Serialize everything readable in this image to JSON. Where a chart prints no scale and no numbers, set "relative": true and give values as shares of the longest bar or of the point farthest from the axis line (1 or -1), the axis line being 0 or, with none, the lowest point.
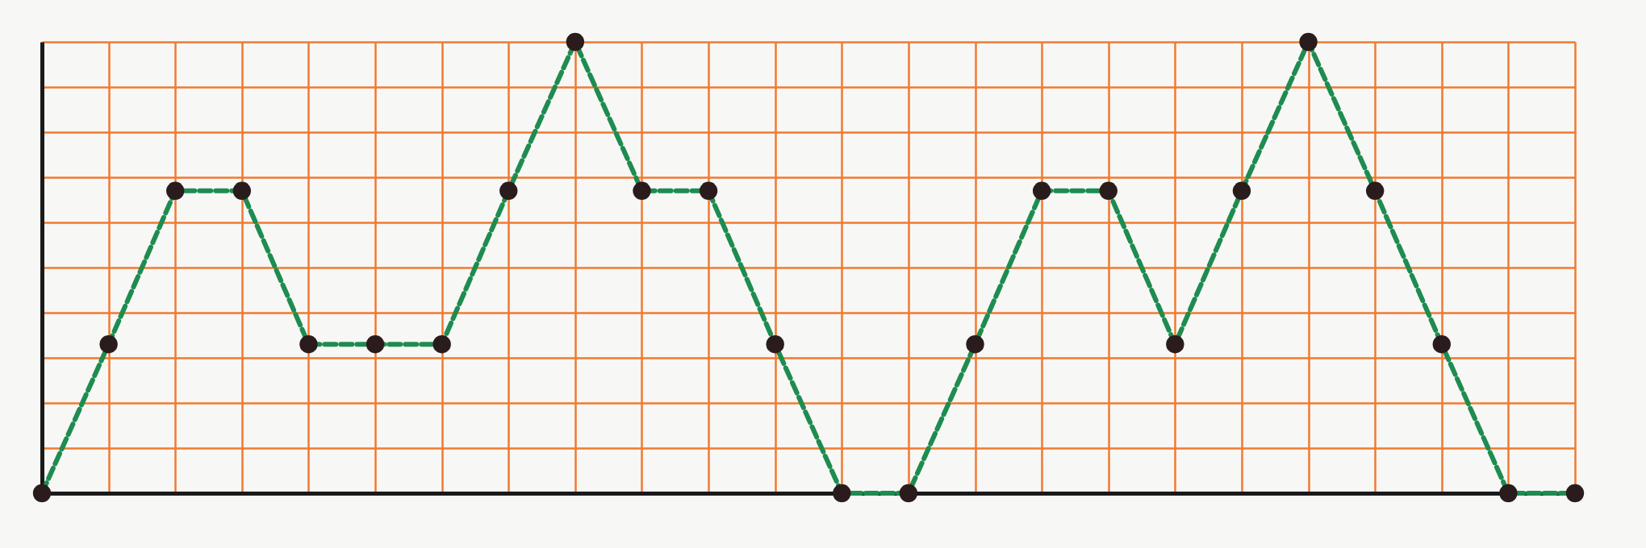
{
  "chart_data": {
    "type": "line",
    "relative": true,
    "grid": true,
    "marker": "circle",
    "line_style": "dashed",
    "categories": [
      null,
      null,
      null,
      null,
      null,
      null,
      null,
      null,
      null,
      null,
      null,
      null,
      null,
      null,
      null,
      null,
      null,
      null,
      null,
      null,
      null,
      null,
      null,
      null
    ],
    "series": [
      {
        "color": "#1e8c50",
        "values": [
          0,
          0.33,
          0.67,
          0.67,
          0.33,
          0.33,
          0.33,
          0.67,
          1,
          0.67,
          0.67,
          0.33,
          0,
          0,
          0.33,
          0.67,
          0.67,
          0.33,
          0.67,
          1,
          0.67,
          0.33,
          0,
          0
        ]
      }
    ]
  }
}
